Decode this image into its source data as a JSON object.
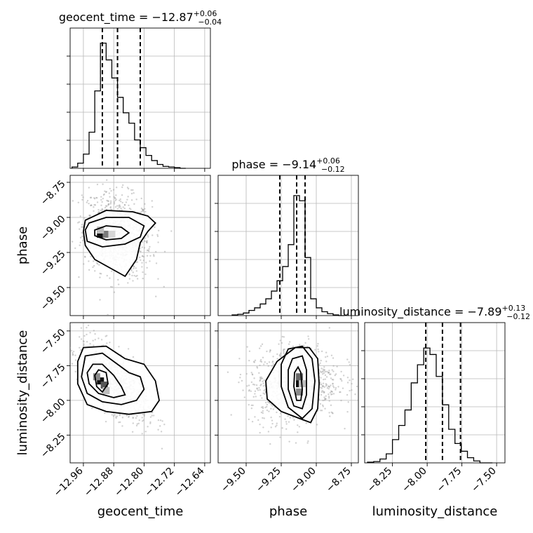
{
  "chart_data": {
    "type": "corner",
    "parameters": [
      {
        "name": "geocent_time",
        "axis_label": "geocent_time",
        "median": -12.87,
        "err_plus": 0.06,
        "err_minus": 0.04,
        "title_main": "geocent_time = −12.87",
        "title_plus": "+0.06",
        "title_minus": "−0.04",
        "range": [
          -12.995,
          -12.625
        ],
        "ticks": [
          -12.96,
          -12.88,
          -12.8,
          -12.72,
          -12.64
        ],
        "tick_labels": [
          "−12.96",
          "−12.88",
          "−12.80",
          "−12.72",
          "−12.64"
        ],
        "quantiles": [
          -12.91,
          -12.87,
          -12.81
        ],
        "hist_edges_start": -12.99,
        "hist_bin_width": 0.015,
        "hist_counts": [
          0.01,
          0.04,
          0.11,
          0.28,
          0.6,
          0.97,
          0.84,
          0.7,
          0.55,
          0.43,
          0.35,
          0.22,
          0.16,
          0.1,
          0.06,
          0.03,
          0.015,
          0.01,
          0.005,
          0.0
        ]
      },
      {
        "name": "phase",
        "axis_label": "phase",
        "median": -9.14,
        "err_plus": 0.06,
        "err_minus": 0.12,
        "title_main": "phase = −9.14",
        "title_plus": "+0.06",
        "title_minus": "−0.12",
        "range": [
          -9.7,
          -8.7
        ],
        "ticks": [
          -9.5,
          -9.25,
          -9.0,
          -8.75
        ],
        "tick_labels": [
          "−9.50",
          "−9.25",
          "−9.00",
          "−8.75"
        ],
        "quantiles": [
          -9.26,
          -9.14,
          -9.08
        ],
        "hist_edges_start": -9.6,
        "hist_bin_width": 0.04,
        "hist_counts": [
          0.005,
          0.01,
          0.02,
          0.04,
          0.06,
          0.09,
          0.13,
          0.19,
          0.27,
          0.38,
          0.55,
          0.93,
          0.89,
          0.45,
          0.13,
          0.06,
          0.03,
          0.015,
          0.005,
          0.0
        ]
      },
      {
        "name": "luminosity_distance",
        "axis_label": "luminosity_distance",
        "median": -7.89,
        "err_plus": 0.13,
        "err_minus": 0.12,
        "title_main": "luminosity_distance = −7.89",
        "title_plus": "+0.13",
        "title_minus": "−0.12",
        "range": [
          -8.45,
          -7.44
        ],
        "ticks": [
          -8.25,
          -8.0,
          -7.75,
          -7.5
        ],
        "tick_labels": [
          "−8.25",
          "−8.00",
          "−7.75",
          "−7.50"
        ],
        "quantiles": [
          -8.01,
          -7.89,
          -7.76
        ],
        "hist_edges_start": -8.43,
        "hist_bin_width": 0.045,
        "hist_counts": [
          0.005,
          0.01,
          0.03,
          0.07,
          0.18,
          0.29,
          0.41,
          0.62,
          0.76,
          0.89,
          0.84,
          0.67,
          0.45,
          0.26,
          0.15,
          0.09,
          0.04,
          0.015,
          0.0,
          0.0
        ]
      }
    ],
    "pairs": [
      {
        "x_param": "geocent_time",
        "y_param": "phase",
        "x_range": [
          -12.995,
          -12.625
        ],
        "y_range": [
          -9.7,
          -8.7
        ],
        "scatter": {
          "cx": -12.87,
          "cy": -9.12,
          "sx": 0.045,
          "sy": 0.15,
          "rho": -0.2,
          "n": 900
        },
        "contours": [
          [
            [
              -12.93,
              -9.09
            ],
            [
              -12.9,
              -9.06
            ],
            [
              -12.86,
              -9.07
            ],
            [
              -12.84,
              -9.11
            ],
            [
              -12.86,
              -9.15
            ],
            [
              -12.9,
              -9.16
            ],
            [
              -12.93,
              -9.13
            ]
          ],
          [
            [
              -12.945,
              -9.04
            ],
            [
              -12.9,
              -9.0
            ],
            [
              -12.84,
              -9.0
            ],
            [
              -12.8,
              -9.06
            ],
            [
              -12.81,
              -9.14
            ],
            [
              -12.85,
              -9.19
            ],
            [
              -12.91,
              -9.21
            ],
            [
              -12.95,
              -9.17
            ],
            [
              -12.955,
              -9.09
            ]
          ],
          [
            [
              -12.955,
              -9.02
            ],
            [
              -12.9,
              -8.95
            ],
            [
              -12.83,
              -8.96
            ],
            [
              -12.79,
              -8.99
            ],
            [
              -12.77,
              -9.04
            ],
            [
              -12.79,
              -9.1
            ],
            [
              -12.81,
              -9.18
            ],
            [
              -12.82,
              -9.3
            ],
            [
              -12.85,
              -9.42
            ],
            [
              -12.89,
              -9.36
            ],
            [
              -12.93,
              -9.3
            ],
            [
              -12.955,
              -9.2
            ],
            [
              -12.96,
              -9.1
            ]
          ]
        ],
        "dense_cells": [
          {
            "x": -12.915,
            "y": -9.12,
            "shade": "#111111"
          },
          {
            "x": -12.9,
            "y": -9.12,
            "shade": "#7a7a7a"
          },
          {
            "x": -12.915,
            "y": -9.09,
            "shade": "#bdbdbd"
          },
          {
            "x": -12.885,
            "y": -9.12,
            "shade": "#d6d6d6"
          }
        ]
      },
      {
        "x_param": "geocent_time",
        "y_param": "luminosity_distance",
        "x_range": [
          -12.995,
          -12.625
        ],
        "y_range": [
          -8.45,
          -7.44
        ],
        "scatter": {
          "cx": -12.88,
          "cy": -7.86,
          "sx": 0.045,
          "sy": 0.14,
          "rho": -0.65,
          "n": 900
        },
        "contours": [
          [
            [
              -12.92,
              -7.78
            ],
            [
              -12.9,
              -7.8
            ],
            [
              -12.895,
              -7.88
            ],
            [
              -12.91,
              -7.94
            ],
            [
              -12.925,
              -7.9
            ],
            [
              -12.93,
              -7.82
            ]
          ],
          [
            [
              -12.935,
              -7.74
            ],
            [
              -12.91,
              -7.74
            ],
            [
              -12.88,
              -7.82
            ],
            [
              -12.86,
              -7.9
            ],
            [
              -12.85,
              -7.96
            ],
            [
              -12.88,
              -7.98
            ],
            [
              -12.92,
              -7.95
            ],
            [
              -12.945,
              -7.88
            ],
            [
              -12.95,
              -7.8
            ]
          ],
          [
            [
              -12.955,
              -7.68
            ],
            [
              -12.91,
              -7.66
            ],
            [
              -12.87,
              -7.74
            ],
            [
              -12.84,
              -7.8
            ],
            [
              -12.81,
              -7.83
            ],
            [
              -12.8,
              -7.92
            ],
            [
              -12.82,
              -8.0
            ],
            [
              -12.86,
              -8.03
            ],
            [
              -12.91,
              -8.01
            ],
            [
              -12.95,
              -7.95
            ],
            [
              -12.965,
              -7.83
            ]
          ],
          [
            [
              -12.96,
              -7.62
            ],
            [
              -12.9,
              -7.61
            ],
            [
              -12.85,
              -7.7
            ],
            [
              -12.8,
              -7.74
            ],
            [
              -12.77,
              -7.86
            ],
            [
              -12.76,
              -8.0
            ],
            [
              -12.78,
              -8.08
            ],
            [
              -12.84,
              -8.1
            ],
            [
              -12.9,
              -8.08
            ],
            [
              -12.95,
              -8.03
            ],
            [
              -12.975,
              -7.88
            ],
            [
              -12.975,
              -7.72
            ]
          ]
        ],
        "dense_cells": [
          {
            "x": -12.915,
            "y": -7.86,
            "shade": "#111111"
          },
          {
            "x": -12.905,
            "y": -7.89,
            "shade": "#555555"
          },
          {
            "x": -12.925,
            "y": -7.83,
            "shade": "#8a8a8a"
          },
          {
            "x": -12.9,
            "y": -7.93,
            "shade": "#bdbdbd"
          }
        ]
      },
      {
        "x_param": "phase",
        "y_param": "luminosity_distance",
        "x_range": [
          -9.7,
          -8.7
        ],
        "y_range": [
          -8.45,
          -7.44
        ],
        "scatter": {
          "cx": -9.16,
          "cy": -7.88,
          "sx": 0.16,
          "sy": 0.14,
          "rho": 0.1,
          "n": 900
        },
        "contours": [
          [
            [
              -9.13,
              -7.76
            ],
            [
              -9.11,
              -7.8
            ],
            [
              -9.1,
              -7.92
            ],
            [
              -9.11,
              -8.0
            ],
            [
              -9.14,
              -8.0
            ],
            [
              -9.16,
              -7.9
            ],
            [
              -9.155,
              -7.8
            ]
          ],
          [
            [
              -9.17,
              -7.7
            ],
            [
              -9.1,
              -7.68
            ],
            [
              -9.07,
              -7.78
            ],
            [
              -9.07,
              -7.96
            ],
            [
              -9.1,
              -8.06
            ],
            [
              -9.16,
              -8.04
            ],
            [
              -9.2,
              -7.92
            ],
            [
              -9.2,
              -7.78
            ]
          ],
          [
            [
              -9.2,
              -7.63
            ],
            [
              -9.1,
              -7.61
            ],
            [
              -9.03,
              -7.7
            ],
            [
              -9.01,
              -7.86
            ],
            [
              -9.03,
              -8.06
            ],
            [
              -9.1,
              -8.13
            ],
            [
              -9.2,
              -8.05
            ],
            [
              -9.25,
              -7.9
            ],
            [
              -9.25,
              -7.74
            ]
          ],
          [
            [
              -9.36,
              -7.86
            ],
            [
              -9.28,
              -7.72
            ],
            [
              -9.15,
              -7.62
            ],
            [
              -9.05,
              -7.62
            ],
            [
              -8.99,
              -7.7
            ],
            [
              -8.98,
              -7.88
            ],
            [
              -8.99,
              -8.06
            ],
            [
              -9.04,
              -8.16
            ],
            [
              -9.12,
              -8.13
            ],
            [
              -9.25,
              -8.08
            ],
            [
              -9.35,
              -7.99
            ]
          ]
        ],
        "dense_cells": [
          {
            "x": -9.12,
            "y": -7.88,
            "shade": "#111111"
          },
          {
            "x": -9.12,
            "y": -7.83,
            "shade": "#6a6a6a"
          },
          {
            "x": -9.12,
            "y": -7.94,
            "shade": "#8a8a8a"
          },
          {
            "x": -9.1,
            "y": -7.88,
            "shade": "#bdbdbd"
          }
        ]
      }
    ],
    "grid": true,
    "colors": {
      "line": "#000000",
      "scatter": "#9a9a9a",
      "grid": "#b8b8b8"
    }
  }
}
